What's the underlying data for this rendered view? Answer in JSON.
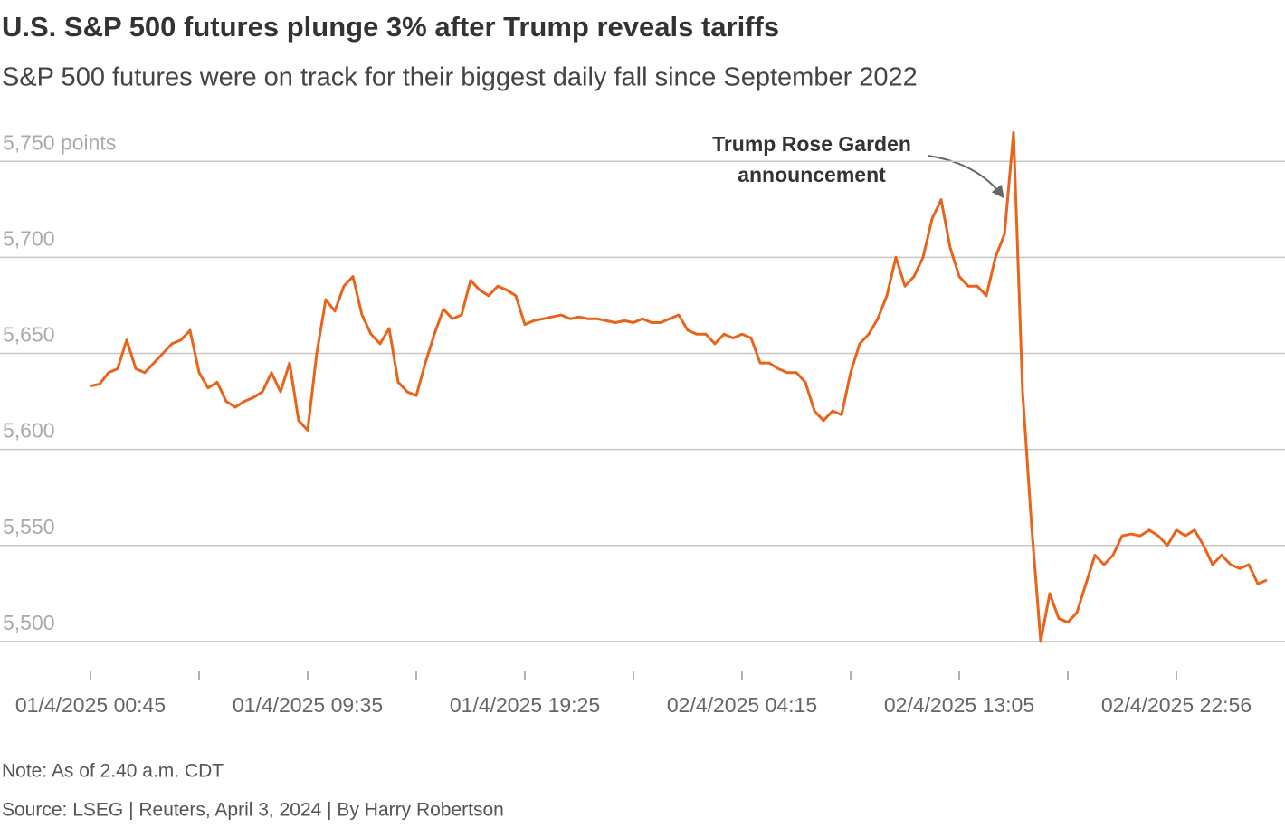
{
  "chart_data": {
    "type": "line",
    "title": "U.S. S&P 500 futures plunge 3% after Trump reveals tariffs",
    "subtitle": "S&P 500 futures were on track for their biggest daily fall since September 2022",
    "note": "Note: As of 2.40 a.m. CDT",
    "source": "Source: LSEG | Reuters, April 3, 2024 | By Harry Robertson",
    "annotation": [
      "Trump Rose Garden",
      "announcement"
    ],
    "categories": [
      "01/4/2025 00:45",
      null,
      null,
      null,
      null,
      null,
      null,
      null,
      null,
      null,
      null,
      null,
      null,
      null,
      null,
      null,
      null,
      null,
      null,
      null,
      null,
      null,
      null,
      null,
      "01/4/2025 09:35",
      null,
      null,
      null,
      null,
      null,
      null,
      null,
      null,
      null,
      null,
      null,
      null,
      null,
      null,
      null,
      null,
      null,
      null,
      null,
      null,
      null,
      null,
      null,
      "01/4/2025 19:25",
      null,
      null,
      null,
      null,
      null,
      null,
      null,
      null,
      null,
      null,
      null,
      null,
      null,
      null,
      null,
      null,
      null,
      null,
      null,
      null,
      null,
      null,
      null,
      "02/4/2025 04:15",
      null,
      null,
      null,
      null,
      null,
      null,
      null,
      null,
      null,
      null,
      null,
      null,
      null,
      null,
      null,
      null,
      null,
      null,
      null,
      null,
      null,
      null,
      null,
      "02/4/2025 13:05",
      null,
      null,
      null,
      null,
      null,
      null,
      null,
      null,
      null,
      null,
      null,
      null,
      null,
      null,
      null,
      null,
      null,
      null,
      null,
      null,
      null,
      null,
      null,
      "02/4/2025 22:56",
      null,
      null,
      null,
      null,
      null,
      null,
      null,
      null,
      null,
      null
    ],
    "series": [
      {
        "name": "S&P 500 futures",
        "color": "#e8641b",
        "values": [
          5633,
          5634,
          5640,
          5642,
          5657,
          5642,
          5640,
          5645,
          5650,
          5655,
          5657,
          5662,
          5640,
          5632,
          5635,
          5625,
          5622,
          5625,
          5627,
          5630,
          5640,
          5630,
          5645,
          5615,
          5610,
          5650,
          5678,
          5672,
          5685,
          5690,
          5670,
          5660,
          5655,
          5663,
          5635,
          5630,
          5628,
          5645,
          5660,
          5673,
          5668,
          5670,
          5688,
          5683,
          5680,
          5685,
          5683,
          5680,
          5665,
          5667,
          5668,
          5669,
          5670,
          5668,
          5669,
          5668,
          5668,
          5667,
          5666,
          5667,
          5666,
          5668,
          5666,
          5666,
          5668,
          5670,
          5662,
          5660,
          5660,
          5655,
          5660,
          5658,
          5660,
          5658,
          5645,
          5645,
          5642,
          5640,
          5640,
          5635,
          5620,
          5615,
          5620,
          5618,
          5640,
          5655,
          5660,
          5668,
          5680,
          5700,
          5685,
          5690,
          5700,
          5720,
          5730,
          5705,
          5690,
          5685,
          5685,
          5680,
          5700,
          5712,
          5765,
          5630,
          5560,
          5500,
          5525,
          5512,
          5510,
          5515,
          5530,
          5545,
          5540,
          5545,
          5555,
          5556,
          5555,
          5558,
          5555,
          5550,
          5558,
          5555,
          5558,
          5550,
          5540,
          5545,
          5540,
          5538,
          5540,
          5530,
          5532
        ]
      }
    ],
    "ylim": [
      5483,
      5768
    ],
    "yticks": [
      {
        "value": 5750,
        "label": "5,750 points"
      },
      {
        "value": 5700,
        "label": "5,700"
      },
      {
        "value": 5650,
        "label": "5,650"
      },
      {
        "value": 5600,
        "label": "5,600"
      },
      {
        "value": 5550,
        "label": "5,550"
      },
      {
        "value": 5500,
        "label": "5,500"
      }
    ],
    "grid": true
  }
}
